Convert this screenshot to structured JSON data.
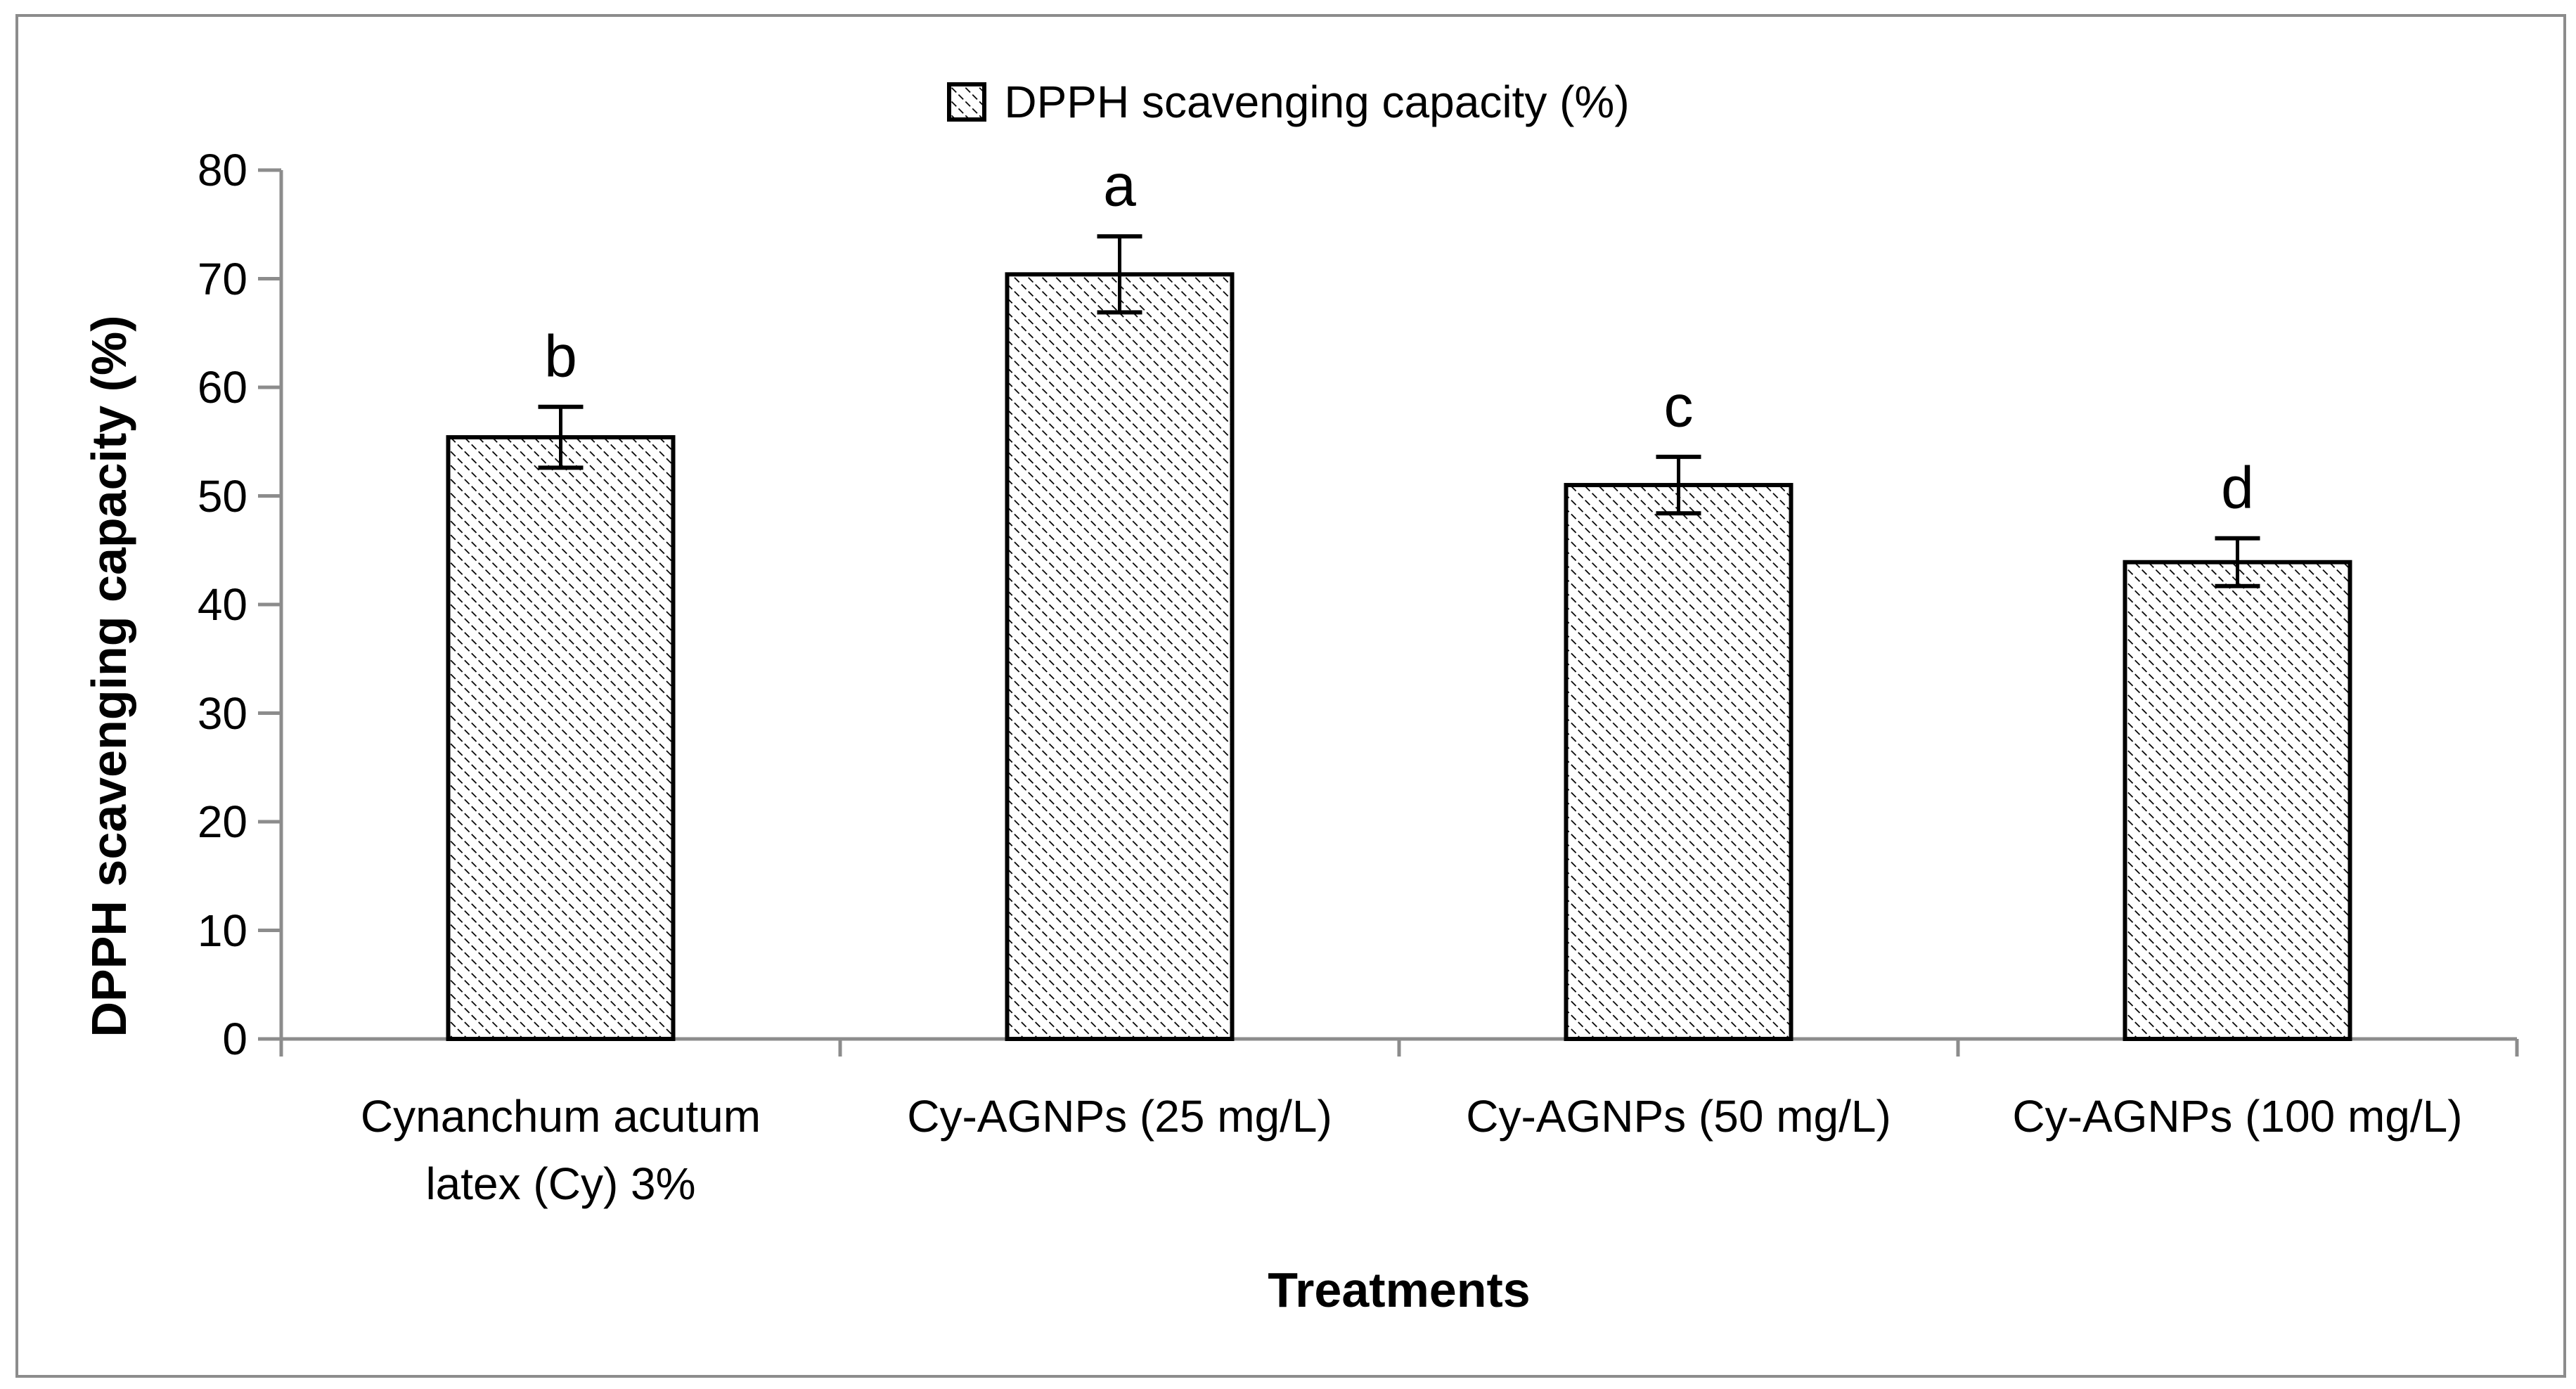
{
  "legend": {
    "label": "DPPH scavenging capacity (%)",
    "marker": "hatched-square",
    "position": "top-center"
  },
  "axes": {
    "y_title": "DPPH scavenging capacity (%)",
    "x_title": "Treatments"
  },
  "colors": {
    "axis": "#8c8c8c",
    "frame": "#8c8c8c",
    "hatch": "#000000",
    "bar_outline": "#000000",
    "text": "#000000",
    "background": "#ffffff"
  },
  "chart_data": {
    "type": "bar",
    "title": "",
    "legend_entries": [
      "DPPH scavenging capacity (%)"
    ],
    "legend_position": "top-center",
    "categories": [
      "Cynanchum acutum latex (Cy) 3%",
      "Cy-AGNPs (25 mg/L)",
      "Cy-AGNPs (50 mg/L)",
      "Cy-AGNPs (100 mg/L)"
    ],
    "category_display_lines": [
      [
        "Cynanchum acutum",
        "latex (Cy) 3%"
      ],
      [
        "Cy-AGNPs (25 mg/L)"
      ],
      [
        "Cy-AGNPs (50 mg/L)"
      ],
      [
        "Cy-AGNPs (100 mg/L)"
      ]
    ],
    "series": [
      {
        "name": "DPPH scavenging capacity (%)",
        "values": [
          55.4,
          70.4,
          51.0,
          43.9
        ],
        "error_bars": [
          2.8,
          3.5,
          2.6,
          2.2
        ],
        "significance_letters": [
          "b",
          "a",
          "c",
          "d"
        ]
      }
    ],
    "xlabel": "Treatments",
    "ylabel": "DPPH scavenging capacity (%)",
    "ylim": [
      0,
      80
    ],
    "yticks": [
      0,
      10,
      20,
      30,
      40,
      50,
      60,
      70,
      80
    ],
    "grid": false,
    "bar_style": "white fill with dotted black diagonal hatch (\\) and black outline"
  }
}
